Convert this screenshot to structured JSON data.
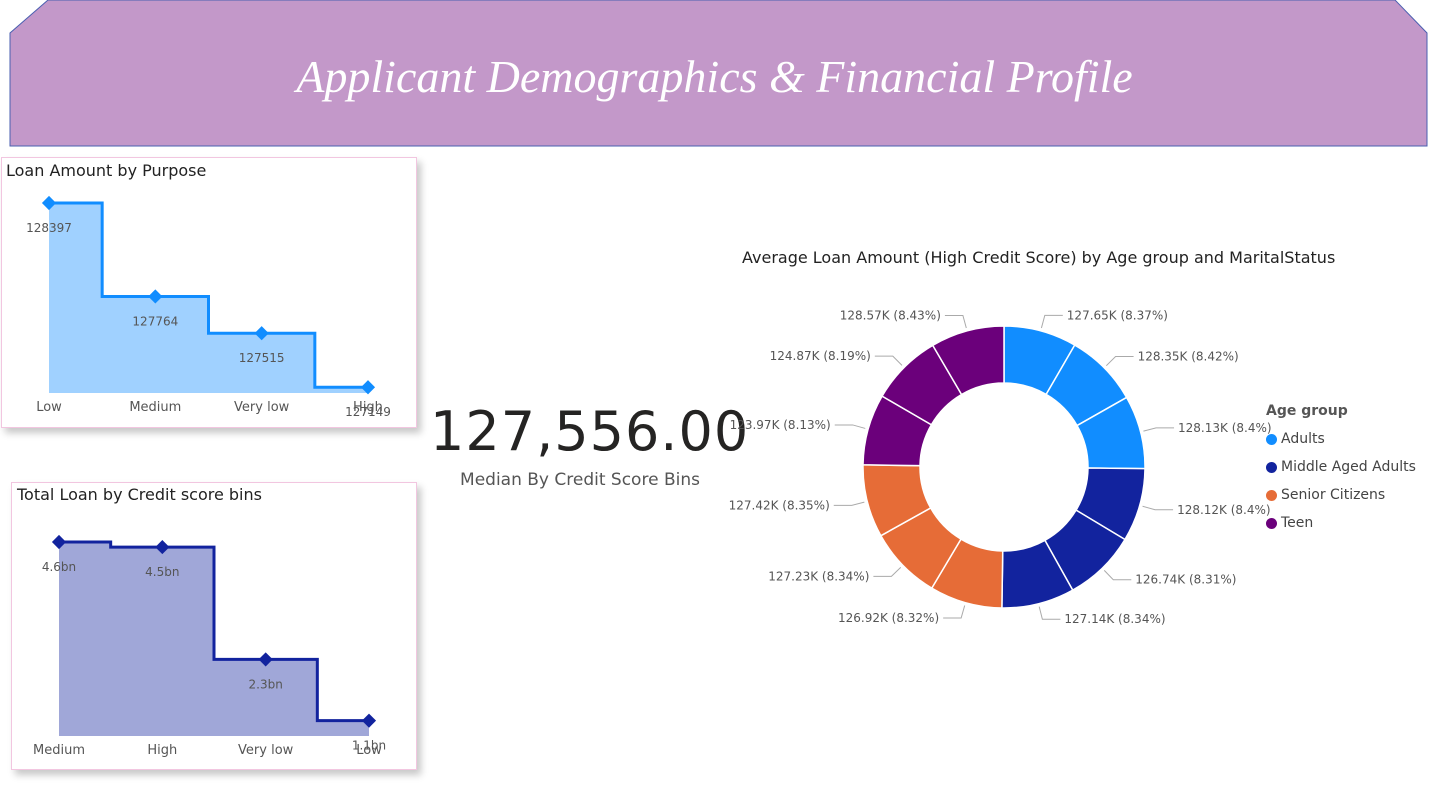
{
  "banner": {
    "title": "Applicant Demographics & Financial Profile",
    "color": "#c398c9"
  },
  "kpi": {
    "value": "127,556.00",
    "label": "Median By Credit Score Bins"
  },
  "chart_data": [
    {
      "type": "area",
      "title": "Loan Amount by Purpose",
      "categories": [
        "Low",
        "Medium",
        "Very low",
        "High"
      ],
      "values": [
        128397,
        127764,
        127515,
        127149
      ],
      "labels": [
        "128397",
        "127764",
        "127515",
        "127149"
      ],
      "color": "#118dff",
      "fill": "#a0d1ff"
    },
    {
      "type": "area",
      "title": "Total Loan by Credit score bins",
      "categories": [
        "Medium",
        "High",
        "Very low",
        "Low"
      ],
      "values": [
        4.6,
        4.5,
        2.3,
        1.1
      ],
      "labels": [
        "4.6bn",
        "4.5bn",
        "2.3bn",
        "1.1bn"
      ],
      "unit": "bn",
      "color": "#12239e",
      "fill": "#a0a7d8"
    },
    {
      "type": "pie",
      "title": "Average Loan Amount (High Credit Score) by Age group and MaritalStatus",
      "legend_title": "Age group",
      "legend_position": "right",
      "groups": [
        {
          "name": "Adults",
          "color": "#118dff"
        },
        {
          "name": "Middle Aged Adults",
          "color": "#12239e"
        },
        {
          "name": "Senior Citizens",
          "color": "#e66c37"
        },
        {
          "name": "Teen",
          "color": "#6b007b"
        }
      ],
      "slices": [
        {
          "group": "Adults",
          "value": 8.37,
          "label": "127.65K (8.37%)"
        },
        {
          "group": "Adults",
          "value": 8.42,
          "label": "128.35K (8.42%)"
        },
        {
          "group": "Adults",
          "value": 8.4,
          "label": "128.13K (8.4%)"
        },
        {
          "group": "Middle Aged Adults",
          "value": 8.4,
          "label": "128.12K (8.4%)"
        },
        {
          "group": "Middle Aged Adults",
          "value": 8.31,
          "label": "126.74K (8.31%)"
        },
        {
          "group": "Middle Aged Adults",
          "value": 8.34,
          "label": "127.14K (8.34%)"
        },
        {
          "group": "Senior Citizens",
          "value": 8.32,
          "label": "126.92K (8.32%)"
        },
        {
          "group": "Senior Citizens",
          "value": 8.34,
          "label": "127.23K (8.34%)"
        },
        {
          "group": "Senior Citizens",
          "value": 8.35,
          "label": "127.42K (8.35%)"
        },
        {
          "group": "Teen",
          "value": 8.13,
          "label": "123.97K (8.13%)"
        },
        {
          "group": "Teen",
          "value": 8.19,
          "label": "124.87K (8.19%)"
        },
        {
          "group": "Teen",
          "value": 8.43,
          "label": "128.57K (8.43%)"
        }
      ]
    }
  ]
}
